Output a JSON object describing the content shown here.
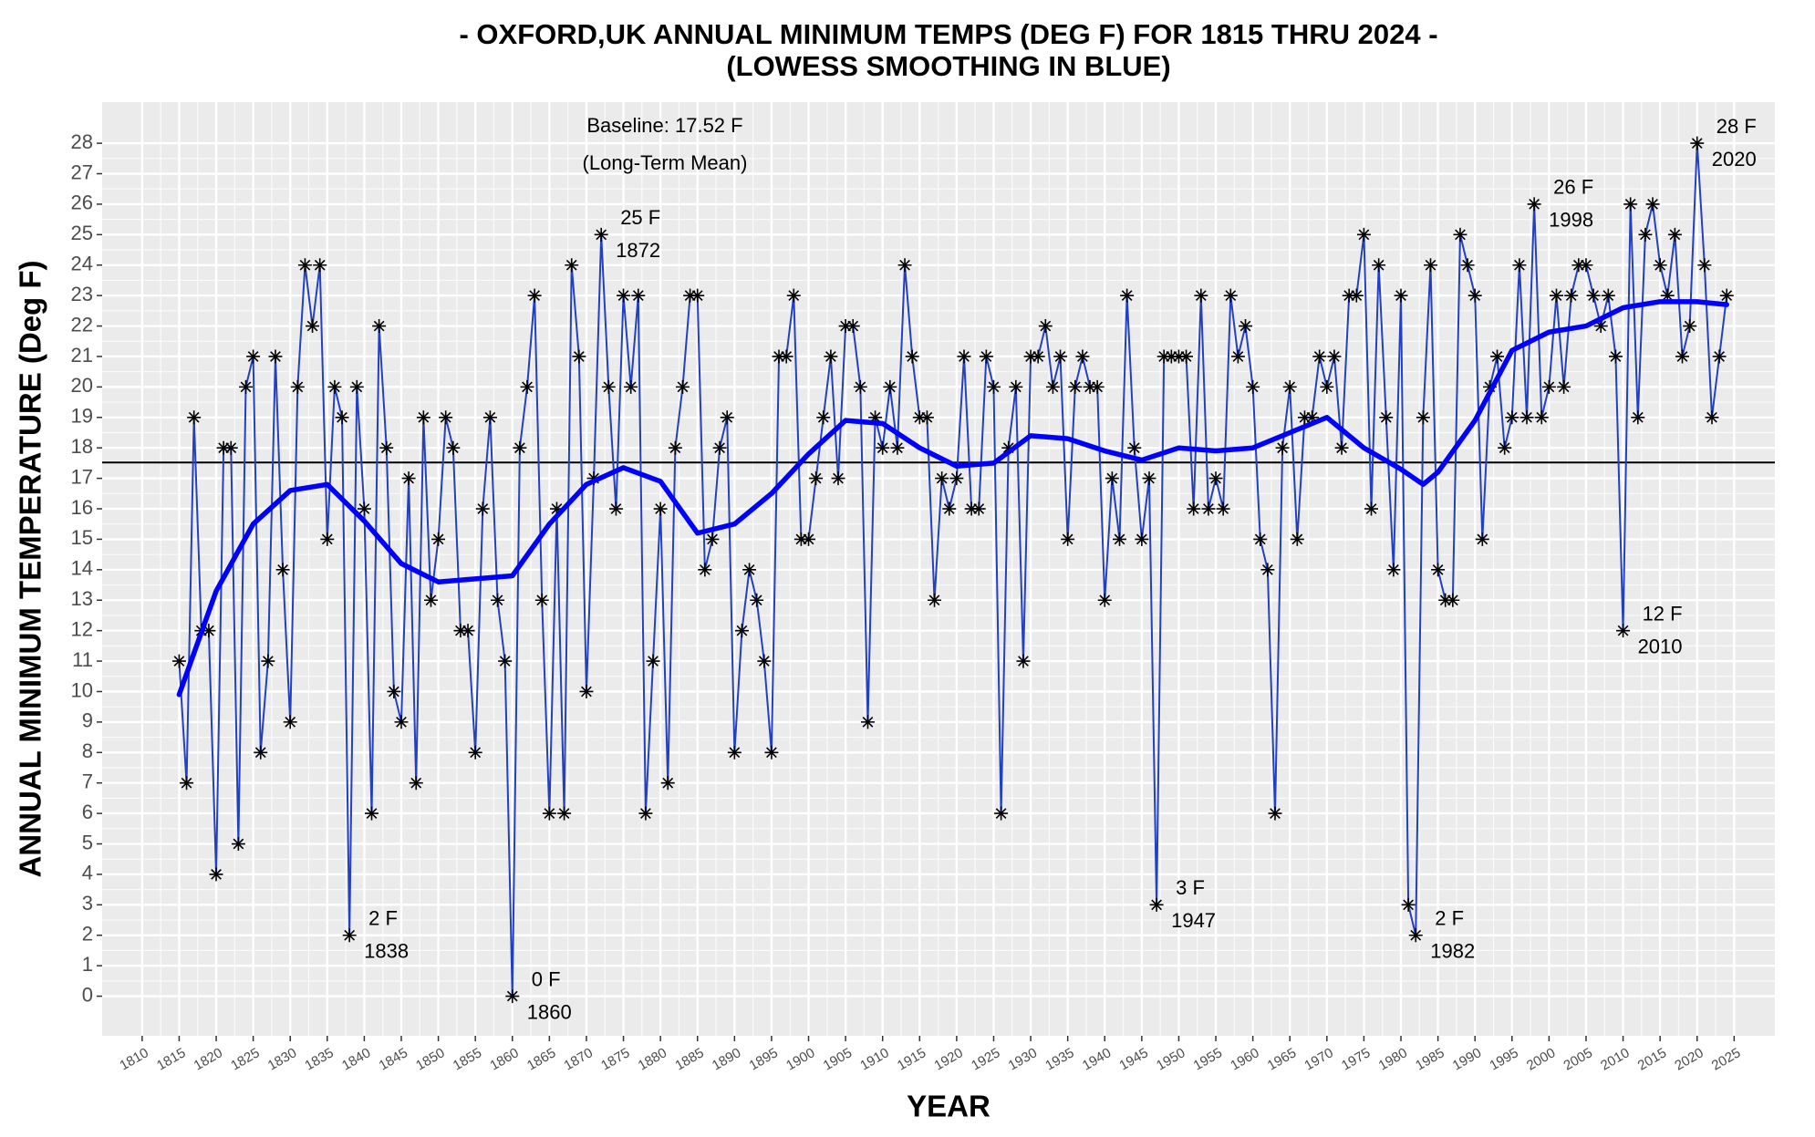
{
  "chart_data": {
    "type": "line",
    "title": [
      "- OXFORD,UK ANNUAL MINIMUM TEMPS (DEG F) FOR 1815 THRU 2024 -",
      "(LOWESS SMOOTHING IN BLUE)"
    ],
    "x_label": "YEAR",
    "y_label": "ANNUAL MINIMUM TEMPERATURE (Deg F)",
    "xlim": [
      1804.6,
      2030.5
    ],
    "ylim": [
      -1.3,
      29.35
    ],
    "xticks": [
      1810,
      1815,
      1820,
      1825,
      1830,
      1835,
      1840,
      1845,
      1850,
      1855,
      1860,
      1865,
      1870,
      1875,
      1880,
      1885,
      1890,
      1895,
      1900,
      1905,
      1910,
      1915,
      1920,
      1925,
      1930,
      1935,
      1940,
      1945,
      1950,
      1955,
      1960,
      1965,
      1970,
      1975,
      1980,
      1985,
      1990,
      1995,
      2000,
      2005,
      2010,
      2015,
      2020,
      2025
    ],
    "yticks": [
      0,
      1,
      2,
      3,
      4,
      5,
      6,
      7,
      8,
      9,
      10,
      11,
      12,
      13,
      14,
      15,
      16,
      17,
      18,
      19,
      20,
      21,
      22,
      23,
      24,
      25,
      26,
      27,
      28
    ],
    "grid": true,
    "baseline": 17.52,
    "baseline_label": [
      "Baseline: 17.52 F",
      "(Long-Term Mean)"
    ],
    "series": [
      {
        "color": "#2340c0",
        "marker": "asterisk",
        "x": [
          1815,
          1816,
          1817,
          1818,
          1819,
          1820,
          1821,
          1822,
          1823,
          1824,
          1825,
          1826,
          1827,
          1828,
          1829,
          1830,
          1831,
          1832,
          1833,
          1834,
          1835,
          1836,
          1837,
          1838,
          1839,
          1840,
          1841,
          1842,
          1843,
          1844,
          1845,
          1846,
          1847,
          1848,
          1849,
          1850,
          1851,
          1852,
          1853,
          1854,
          1855,
          1856,
          1857,
          1858,
          1859,
          1860,
          1861,
          1862,
          1863,
          1864,
          1865,
          1866,
          1867,
          1868,
          1869,
          1870,
          1871,
          1872,
          1873,
          1874,
          1875,
          1876,
          1877,
          1878,
          1879,
          1880,
          1881,
          1882,
          1883,
          1884,
          1885,
          1886,
          1887,
          1888,
          1889,
          1890,
          1891,
          1892,
          1893,
          1894,
          1895,
          1896,
          1897,
          1898,
          1899,
          1900,
          1901,
          1902,
          1903,
          1904,
          1905,
          1906,
          1907,
          1908,
          1909,
          1910,
          1911,
          1912,
          1913,
          1914,
          1915,
          1916,
          1917,
          1918,
          1919,
          1920,
          1921,
          1922,
          1923,
          1924,
          1925,
          1926,
          1927,
          1928,
          1929,
          1930,
          1931,
          1932,
          1933,
          1934,
          1935,
          1936,
          1937,
          1938,
          1939,
          1940,
          1941,
          1942,
          1943,
          1944,
          1945,
          1946,
          1947,
          1948,
          1949,
          1950,
          1951,
          1952,
          1953,
          1954,
          1955,
          1956,
          1957,
          1958,
          1959,
          1960,
          1961,
          1962,
          1963,
          1964,
          1965,
          1966,
          1967,
          1968,
          1969,
          1970,
          1971,
          1972,
          1973,
          1974,
          1975,
          1976,
          1977,
          1978,
          1979,
          1980,
          1981,
          1982,
          1983,
          1984,
          1985,
          1986,
          1987,
          1988,
          1989,
          1990,
          1991,
          1992,
          1993,
          1994,
          1995,
          1996,
          1997,
          1998,
          1999,
          2000,
          2001,
          2002,
          2003,
          2004,
          2005,
          2006,
          2007,
          2008,
          2009,
          2010,
          2011,
          2012,
          2013,
          2014,
          2015,
          2016,
          2017,
          2018,
          2019,
          2020,
          2021,
          2022,
          2023,
          2024
        ],
        "values": [
          11,
          7,
          19,
          12,
          12,
          4,
          18,
          18,
          5,
          20,
          21,
          8,
          11,
          21,
          14,
          9,
          20,
          24,
          22,
          24,
          15,
          20,
          19,
          2,
          20,
          16,
          6,
          22,
          18,
          10,
          9,
          17,
          7,
          19,
          13,
          15,
          19,
          18,
          12,
          12,
          8,
          16,
          19,
          13,
          11,
          0,
          18,
          20,
          23,
          13,
          6,
          16,
          6,
          24,
          21,
          10,
          17,
          25,
          20,
          16,
          23,
          20,
          23,
          6,
          11,
          16,
          7,
          18,
          20,
          23,
          23,
          14,
          15,
          18,
          19,
          8,
          12,
          14,
          13,
          11,
          8,
          21,
          21,
          23,
          15,
          15,
          17,
          19,
          21,
          17,
          22,
          22,
          20,
          9,
          19,
          18,
          20,
          18,
          24,
          21,
          19,
          19,
          13,
          17,
          16,
          17,
          21,
          16,
          16,
          21,
          20,
          6,
          18,
          20,
          11,
          21,
          21,
          22,
          20,
          21,
          15,
          20,
          21,
          20,
          20,
          13,
          17,
          15,
          23,
          18,
          15,
          17,
          3,
          21,
          21,
          21,
          21,
          16,
          23,
          16,
          17,
          16,
          23,
          21,
          22,
          20,
          15,
          14,
          6,
          18,
          20,
          15,
          19,
          19,
          21,
          20,
          21,
          18,
          23,
          23,
          25,
          16,
          24,
          19,
          14,
          23,
          3,
          2,
          19,
          24,
          14,
          13,
          13,
          25,
          24,
          23,
          15,
          20,
          21,
          18,
          19,
          24,
          19,
          26,
          19,
          20,
          23,
          20,
          23,
          24,
          24,
          23,
          22,
          23,
          21,
          12,
          26,
          19,
          25,
          26,
          24,
          23,
          25,
          21,
          22,
          28,
          24,
          19,
          21,
          23
        ]
      },
      {
        "color": "#0000ff",
        "smooth": true,
        "x": [
          1815,
          1820,
          1825,
          1830,
          1835,
          1840,
          1845,
          1850,
          1855,
          1860,
          1865,
          1870,
          1875,
          1880,
          1885,
          1890,
          1895,
          1900,
          1905,
          1910,
          1915,
          1920,
          1925,
          1930,
          1935,
          1940,
          1945,
          1950,
          1955,
          1960,
          1965,
          1970,
          1975,
          1980,
          1983,
          1985,
          1990,
          1995,
          2000,
          2005,
          2010,
          2015,
          2020,
          2024
        ],
        "values": [
          9.9,
          13.3,
          15.5,
          16.6,
          16.8,
          15.6,
          14.2,
          13.6,
          13.7,
          13.8,
          15.5,
          16.8,
          17.35,
          16.9,
          15.2,
          15.5,
          16.5,
          17.8,
          18.9,
          18.8,
          18.0,
          17.4,
          17.5,
          18.4,
          18.3,
          17.9,
          17.6,
          18.0,
          17.9,
          18.0,
          18.5,
          19.0,
          18.0,
          17.3,
          16.8,
          17.2,
          18.9,
          21.2,
          21.8,
          22.0,
          22.6,
          22.8,
          22.8,
          22.7
        ]
      }
    ],
    "annotations": [
      {
        "x": 1838,
        "y": 2,
        "lines": [
          "2 F",
          "1838"
        ]
      },
      {
        "x": 1860,
        "y": 0,
        "lines": [
          "0 F",
          "1860"
        ]
      },
      {
        "x": 1872,
        "y": 25,
        "lines": [
          "25 F",
          "1872"
        ]
      },
      {
        "x": 1947,
        "y": 3,
        "lines": [
          "3 F",
          "1947"
        ]
      },
      {
        "x": 1982,
        "y": 2,
        "lines": [
          "2 F",
          "1982"
        ]
      },
      {
        "x": 1998,
        "y": 26,
        "lines": [
          "26 F",
          "1998"
        ]
      },
      {
        "x": 2010,
        "y": 12,
        "lines": [
          "12 F",
          "2010"
        ]
      },
      {
        "x": 2020,
        "y": 28,
        "lines": [
          "28 F",
          "2020"
        ]
      }
    ]
  }
}
